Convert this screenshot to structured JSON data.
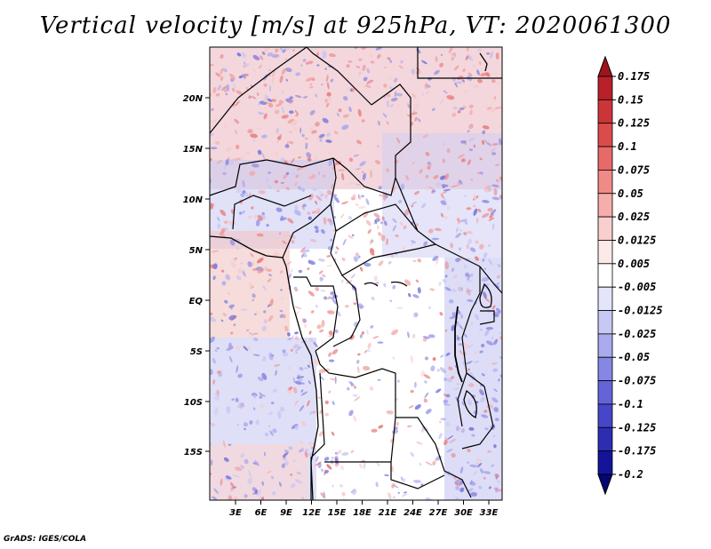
{
  "title": "Vertical velocity [m/s] at 925hPa, VT: 2020061300",
  "credit": "GrADS: IGES/COLA",
  "lat_labels": [
    "20N",
    "15N",
    "10N",
    "5N",
    "EQ",
    "5S",
    "10S",
    "15S"
  ],
  "lon_labels": [
    "3E",
    "6E",
    "9E",
    "12E",
    "15E",
    "18E",
    "21E",
    "24E",
    "27E",
    "30E",
    "33E"
  ],
  "colorbar": {
    "levels": [
      "0.175",
      "0.15",
      "0.125",
      "0.1",
      "0.075",
      "0.05",
      "0.025",
      "0.0125",
      "0.005",
      "-0.005",
      "-0.0125",
      "-0.025",
      "-0.05",
      "-0.075",
      "-0.1",
      "-0.125",
      "-0.175",
      "-0.2"
    ],
    "colors": [
      "#a0141e",
      "#b8202a",
      "#cc3538",
      "#dc4b4b",
      "#e76a68",
      "#ef8a88",
      "#f5aeac",
      "#f9cfcd",
      "#fce9e8",
      "#ffffff",
      "#e4e4fb",
      "#c8c8f5",
      "#aaaaee",
      "#8686e4",
      "#6464d8",
      "#4646c8",
      "#2d2db4",
      "#14149a",
      "#050575"
    ]
  }
}
